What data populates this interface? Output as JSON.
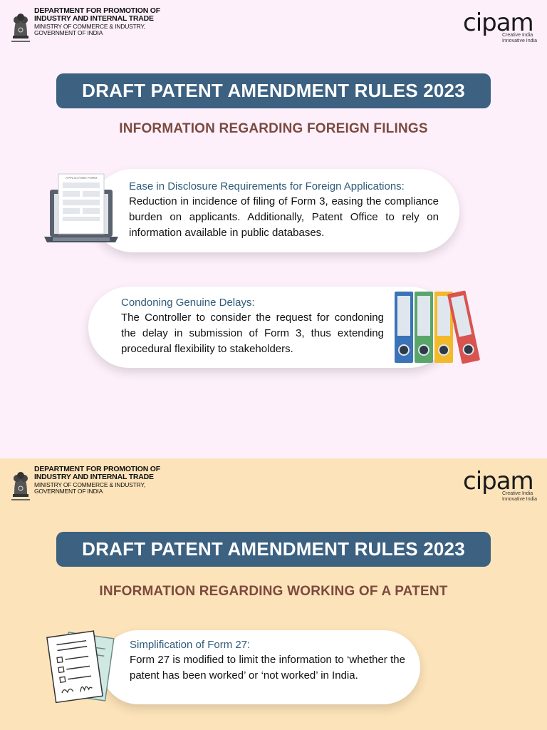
{
  "header": {
    "dept_line1": "DEPARTMENT FOR PROMOTION OF",
    "dept_line2": "INDUSTRY AND INTERNAL TRADE",
    "dept_line3": "MINISTRY OF COMMERCE & INDUSTRY,",
    "dept_line4": "GOVERNMENT OF INDIA",
    "cipam_logo": "cipam",
    "cipam_tag1": "Creative India",
    "cipam_tag2": "Innovative India"
  },
  "section1": {
    "title": "DRAFT PATENT AMENDMENT RULES 2023",
    "subtitle": "INFORMATION REGARDING FOREIGN FILINGS",
    "cards": [
      {
        "heading": "Ease in Disclosure Requirements for Foreign Applications:",
        "body": "Reduction in incidence of filing of Form 3, easing the compliance burden on applicants. Additionally, Patent Office to  rely on information available in public databases.",
        "illustration_label": "APPLICATION FORM"
      },
      {
        "heading": "Condoning Genuine Delays:",
        "body": "The Controller to consider the request for condoning the delay in submission of Form 3, thus extending procedural flexibility to stakeholders."
      }
    ]
  },
  "section2": {
    "title": "DRAFT PATENT AMENDMENT RULES 2023",
    "subtitle": "INFORMATION REGARDING WORKING OF A PATENT",
    "cards": [
      {
        "heading": "Simplification of Form 27:",
        "body": "Form 27 is modified to limit the information to ‘whether the patent has been worked’ or ‘not worked’ in India."
      }
    ]
  },
  "colors": {
    "top_bg": "#fdf0fb",
    "bottom_bg": "#fde3b9",
    "title_pill": "#3c6181",
    "subtitle": "#7b4a3e",
    "card_heading": "#2f5b79"
  },
  "icons": [
    "national-emblem-icon",
    "laptop-form-icon",
    "binders-icon",
    "documents-icon"
  ]
}
